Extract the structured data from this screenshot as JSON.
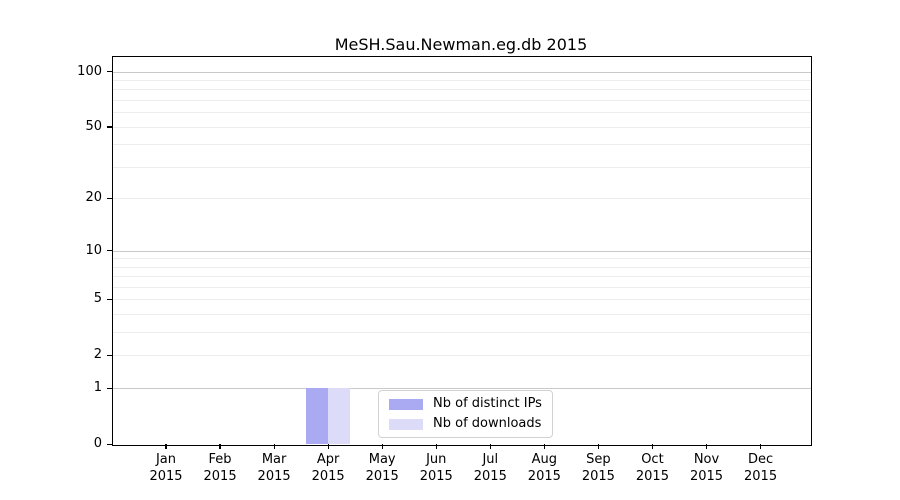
{
  "chart_data": {
    "type": "bar",
    "title": "MeSH.Sau.Newman.eg.db 2015",
    "categories": [
      "Jan",
      "Feb",
      "Mar",
      "Apr",
      "May",
      "Jun",
      "Jul",
      "Aug",
      "Sep",
      "Oct",
      "Nov",
      "Dec"
    ],
    "x_tick_year": "2015",
    "series": [
      {
        "name": "Nb of distinct IPs",
        "color": "#aaaaf2",
        "values": [
          0,
          0,
          0,
          1,
          0,
          0,
          0,
          0,
          0,
          0,
          0,
          0
        ]
      },
      {
        "name": "Nb of downloads",
        "color": "#dcdcf8",
        "values": [
          0,
          0,
          0,
          1,
          0,
          0,
          0,
          0,
          0,
          0,
          0,
          0
        ]
      }
    ],
    "xlabel": "",
    "ylabel": "",
    "y_scale": "log1p",
    "ylim": [
      0,
      120
    ],
    "y_ticks": [
      0,
      1,
      2,
      5,
      10,
      20,
      50,
      100
    ],
    "y_major_gridlines": [
      1,
      10,
      100
    ],
    "y_minor_gridlines": [
      2,
      3,
      4,
      5,
      6,
      7,
      8,
      9,
      20,
      30,
      40,
      50,
      60,
      70,
      80,
      90
    ],
    "grid": true,
    "legend": {
      "position": "lower center"
    }
  }
}
